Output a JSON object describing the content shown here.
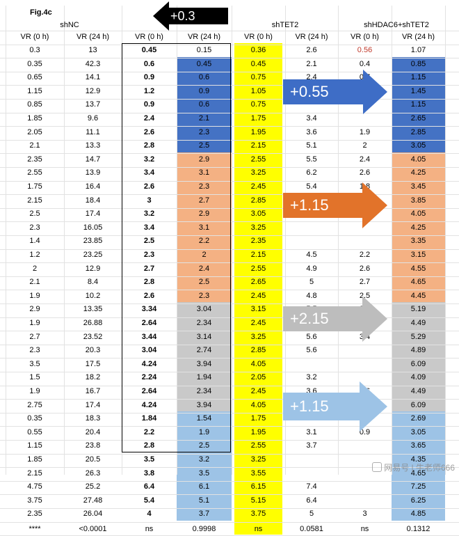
{
  "figure_label": "Fig.4c",
  "groups": [
    "shNC",
    "shTET2",
    "shHDAC6+shTET2"
  ],
  "headers": [
    "VR (0 h)",
    "VR (24 h)",
    "VR (0 h)",
    "VR (24 h)",
    "VR (0 h)",
    "VR (24 h)",
    "VR (0 h)",
    "VR (24 h)"
  ],
  "rows": [
    [
      "0.3",
      "13",
      "0.45",
      "0.15",
      "0.36",
      "2.6",
      "0.56",
      "1.07"
    ],
    [
      "0.35",
      "42.3",
      "0.6",
      "0.45",
      "0.45",
      "2.1",
      "0.4",
      "0.85"
    ],
    [
      "0.65",
      "14.1",
      "0.9",
      "0.6",
      "0.75",
      "2.4",
      "0.7",
      "1.15"
    ],
    [
      "1.15",
      "12.9",
      "1.2",
      "0.9",
      "1.05",
      "",
      "",
      "1.45"
    ],
    [
      "0.85",
      "13.7",
      "0.9",
      "0.6",
      "0.75",
      "",
      "",
      "1.15"
    ],
    [
      "1.85",
      "9.6",
      "2.4",
      "2.1",
      "1.75",
      "3.4",
      "",
      "2.65"
    ],
    [
      "2.05",
      "11.1",
      "2.6",
      "2.3",
      "1.95",
      "3.6",
      "1.9",
      "2.85"
    ],
    [
      "2.1",
      "13.3",
      "2.8",
      "2.5",
      "2.15",
      "5.1",
      "2",
      "3.05"
    ],
    [
      "2.35",
      "14.7",
      "3.2",
      "2.9",
      "2.55",
      "5.5",
      "2.4",
      "4.05"
    ],
    [
      "2.55",
      "13.9",
      "3.4",
      "3.1",
      "3.25",
      "6.2",
      "2.6",
      "4.25"
    ],
    [
      "1.75",
      "16.4",
      "2.6",
      "2.3",
      "2.45",
      "5.4",
      "1.8",
      "3.45"
    ],
    [
      "2.15",
      "18.4",
      "3",
      "2.7",
      "2.85",
      "5.8",
      "2.2",
      "3.85"
    ],
    [
      "2.5",
      "17.4",
      "3.2",
      "2.9",
      "3.05",
      "6",
      "",
      "4.05"
    ],
    [
      "2.3",
      "16.05",
      "3.4",
      "3.1",
      "3.25",
      "",
      "",
      "4.25"
    ],
    [
      "1.4",
      "23.85",
      "2.5",
      "2.2",
      "2.35",
      "",
      "",
      "3.35"
    ],
    [
      "1.2",
      "23.25",
      "2.3",
      "2",
      "2.15",
      "4.5",
      "2.2",
      "3.15"
    ],
    [
      "2",
      "12.9",
      "2.7",
      "2.4",
      "2.55",
      "4.9",
      "2.6",
      "4.55"
    ],
    [
      "2.1",
      "8.4",
      "2.8",
      "2.5",
      "2.65",
      "5",
      "2.7",
      "4.65"
    ],
    [
      "1.9",
      "10.2",
      "2.6",
      "2.3",
      "2.45",
      "4.8",
      "2.5",
      "4.45"
    ],
    [
      "2.9",
      "13.35",
      "3.34",
      "3.04",
      "3.15",
      "5.5",
      "3.4",
      "5.19"
    ],
    [
      "1.9",
      "26.88",
      "2.64",
      "2.34",
      "2.45",
      "4.8",
      "1.6",
      "4.49"
    ],
    [
      "2.7",
      "23.52",
      "3.44",
      "3.14",
      "3.25",
      "5.6",
      "3.4",
      "5.29"
    ],
    [
      "2.3",
      "20.3",
      "3.04",
      "2.74",
      "2.85",
      "5.6",
      "",
      "4.89"
    ],
    [
      "3.5",
      "17.5",
      "4.24",
      "3.94",
      "4.05",
      "",
      "",
      "6.09"
    ],
    [
      "1.5",
      "18.2",
      "2.24",
      "1.94",
      "2.05",
      "3.2",
      "",
      "4.09"
    ],
    [
      "1.9",
      "16.7",
      "2.64",
      "2.34",
      "2.45",
      "3.6",
      "1.6",
      "4.49"
    ],
    [
      "2.75",
      "17.4",
      "4.24",
      "3.94",
      "4.05",
      "5.2",
      "3.1",
      "6.09"
    ],
    [
      "0.35",
      "18.3",
      "1.84",
      "1.54",
      "1.75",
      "2.9",
      "0.7",
      "2.69"
    ],
    [
      "0.55",
      "20.4",
      "2.2",
      "1.9",
      "1.95",
      "3.1",
      "0.9",
      "3.05"
    ],
    [
      "1.15",
      "23.8",
      "2.8",
      "2.5",
      "2.55",
      "3.7",
      "",
      "3.65"
    ],
    [
      "1.85",
      "20.5",
      "3.5",
      "3.2",
      "3.25",
      "",
      "",
      "4.35"
    ],
    [
      "2.15",
      "26.3",
      "3.8",
      "3.5",
      "3.55",
      "",
      "",
      "4.65"
    ],
    [
      "4.75",
      "25.2",
      "6.4",
      "6.1",
      "6.15",
      "7.4",
      "",
      "7.25"
    ],
    [
      "3.75",
      "27.48",
      "5.4",
      "5.1",
      "5.15",
      "6.4",
      "",
      "6.25"
    ],
    [
      "2.35",
      "26.04",
      "4",
      "3.7",
      "3.75",
      "5",
      "3",
      "4.85"
    ]
  ],
  "stats_row": [
    "****",
    "<0.0001",
    "ns",
    "0.9998",
    "ns",
    "0.0581",
    "ns",
    "0.1312"
  ],
  "arrows": [
    {
      "label": "+0.3",
      "color": "#000000",
      "direction": "left"
    },
    {
      "label": "+0.55",
      "color": "#3e6dc6",
      "direction": "right"
    },
    {
      "label": "+1.15",
      "color": "#e2732a",
      "direction": "right"
    },
    {
      "label": "+2.15",
      "color": "#bdbdbd",
      "direction": "right"
    },
    {
      "label": "+1.15",
      "color": "#9dc3e6",
      "direction": "right"
    }
  ],
  "band_colors": {
    "blue_dark": "#4472c4",
    "orange": "#f4b183",
    "gray": "#c9c9c9",
    "blue_light": "#9dc3e6",
    "yellow": "#ffff00"
  },
  "watermark": "网易号 | 牛老师666"
}
